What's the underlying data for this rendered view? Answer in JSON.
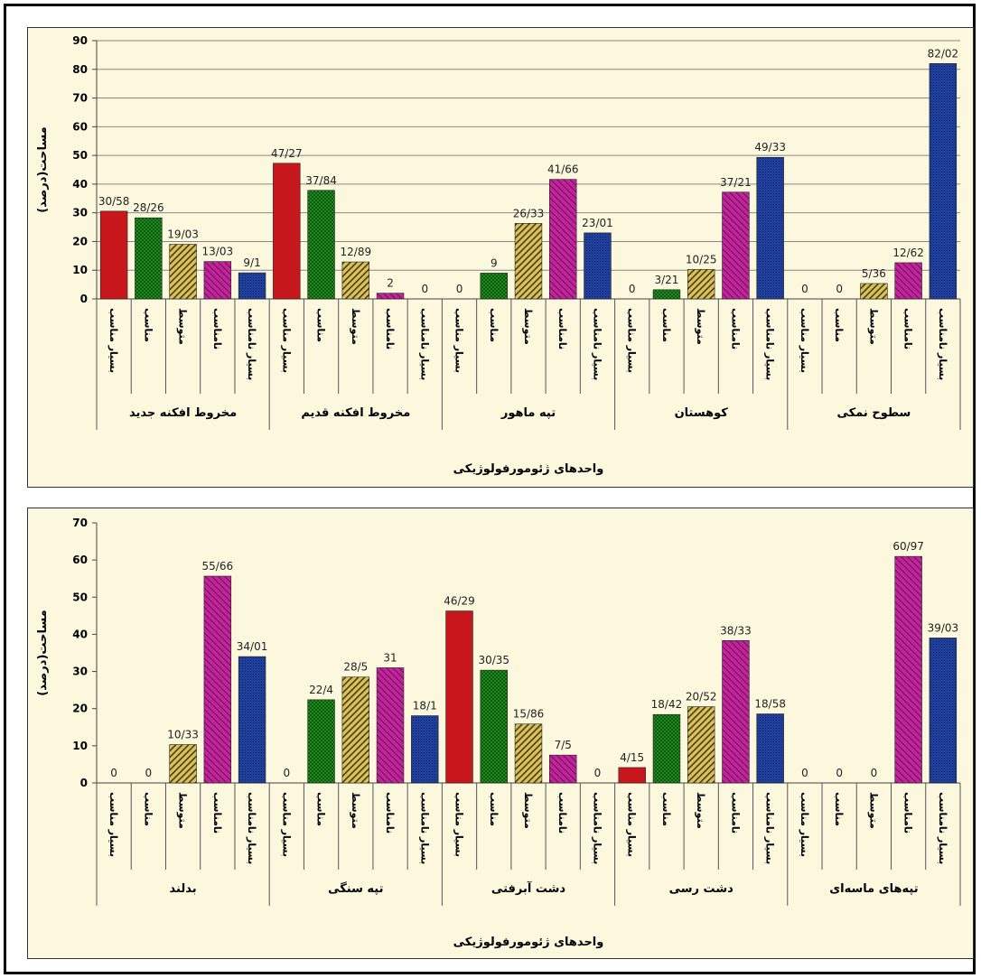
{
  "chart_data": [
    {
      "type": "bar",
      "ylabel": "مساحت(درصد)",
      "xlabel": "واحدهای ژئومورفولوژیکی",
      "ylim": [
        0,
        90
      ],
      "yticks": [
        0,
        10,
        20,
        30,
        40,
        50,
        60,
        70,
        80,
        90
      ],
      "grid": true,
      "groups": [
        "مخروط افکنه جدید",
        "مخروط افکنه قدیم",
        "تپه ماهور",
        "کوهستان",
        "سطوح نمکی"
      ],
      "categories": [
        "بسیار مناسب",
        "مناسب",
        "متوسط",
        "نامناسب",
        "بسیار نامناسب"
      ],
      "series_colors": [
        "#c8161d",
        "#1f8a1f",
        "#d9c15c",
        "#c0269a",
        "#1f3f9a"
      ],
      "values": [
        [
          30.58,
          28.26,
          19.03,
          13.03,
          9.1
        ],
        [
          47.27,
          37.84,
          12.89,
          2,
          0
        ],
        [
          0,
          9,
          26.33,
          41.66,
          23.01
        ],
        [
          0,
          3.21,
          10.25,
          37.21,
          49.33
        ],
        [
          0,
          0,
          5.36,
          12.62,
          82.02
        ]
      ],
      "data_labels": [
        [
          "30/58",
          "28/26",
          "19/03",
          "13/03",
          "9/1"
        ],
        [
          "47/27",
          "37/84",
          "12/89",
          "2",
          "0"
        ],
        [
          "0",
          "9",
          "26/33",
          "41/66",
          "23/01"
        ],
        [
          "0",
          "3/21",
          "10/25",
          "37/21",
          "49/33"
        ],
        [
          "0",
          "0",
          "5/36",
          "12/62",
          "82/02"
        ]
      ]
    },
    {
      "type": "bar",
      "ylabel": "مساحت(درصد)",
      "xlabel": "واحدهای ژئومورفولوژیکی",
      "ylim": [
        0,
        70
      ],
      "yticks": [
        0,
        10,
        20,
        30,
        40,
        50,
        60,
        70
      ],
      "grid": false,
      "groups": [
        "بدلند",
        "تپه سنگی",
        "دشت آبرفتی",
        "دشت رسی",
        "تپه‌های ماسه‌ای"
      ],
      "categories": [
        "بسیار مناسب",
        "مناسب",
        "متوسط",
        "نامناسب",
        "بسیار نامناسب"
      ],
      "series_colors": [
        "#c8161d",
        "#1f8a1f",
        "#d9c15c",
        "#c0269a",
        "#1f3f9a"
      ],
      "values": [
        [
          0,
          0,
          10.33,
          55.66,
          34.01
        ],
        [
          0,
          22.4,
          28.5,
          31,
          18.1
        ],
        [
          46.29,
          30.35,
          15.86,
          7.5,
          0
        ],
        [
          4.15,
          18.42,
          20.52,
          38.33,
          18.58
        ],
        [
          0,
          0,
          0,
          60.97,
          39.03
        ]
      ],
      "data_labels": [
        [
          "0",
          "0",
          "10/33",
          "55/66",
          "34/01"
        ],
        [
          "0",
          "22/4",
          "28/5",
          "31",
          "18/1"
        ],
        [
          "46/29",
          "30/35",
          "15/86",
          "7/5",
          "0"
        ],
        [
          "4/15",
          "18/42",
          "20/52",
          "38/33",
          "18/58"
        ],
        [
          "0",
          "0",
          "0",
          "60/97",
          "39/03"
        ]
      ]
    }
  ]
}
